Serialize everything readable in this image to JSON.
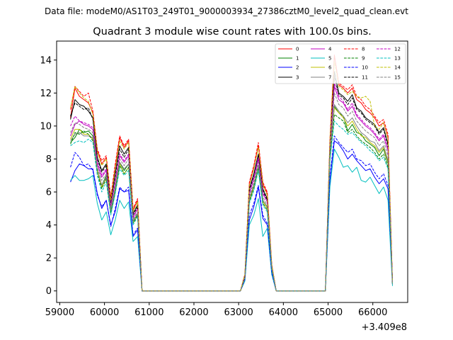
{
  "file_label": "Data file: modeM0/AS1T03_249T01_9000003934_27386cztM0_level2_quad_clean.evt",
  "chart_data": {
    "type": "line",
    "title": "Quadrant 3 module wise count rates with 100.0s bins.",
    "xlabel": "",
    "ylabel": "",
    "x_offset_label": "+3.409e8",
    "xlim": [
      58930,
      66780
    ],
    "ylim": [
      -0.7,
      15.15
    ],
    "x_ticks": [
      59000,
      60000,
      61000,
      62000,
      63000,
      64000,
      65000,
      66000
    ],
    "y_ticks": [
      0,
      2,
      4,
      6,
      8,
      10,
      12,
      14
    ],
    "grid": false,
    "legend_position": "top-right",
    "legend_columns": 4,
    "x": [
      59240,
      59340,
      59440,
      59540,
      59640,
      59740,
      59840,
      59940,
      60040,
      60140,
      60240,
      60340,
      60440,
      60540,
      60640,
      60740,
      60840,
      60940,
      63040,
      63140,
      63240,
      63340,
      63440,
      63540,
      63640,
      63740,
      63840,
      64940,
      65040,
      65140,
      65240,
      65340,
      65440,
      65540,
      65640,
      65740,
      65840,
      65940,
      66040,
      66140,
      66240,
      66340,
      66440
    ],
    "series": [
      {
        "name": "0",
        "color": "#ff0000",
        "dash": "solid",
        "values": [
          10.5,
          12.3,
          11.8,
          11.6,
          11.4,
          10.8,
          8.5,
          7.7,
          8.1,
          5.6,
          7.5,
          9.3,
          8.7,
          9.1,
          4.9,
          5.5,
          0,
          0,
          0,
          1.0,
          6.5,
          7.5,
          8.8,
          6.5,
          5.9,
          1.6,
          0,
          0,
          9.0,
          14.3,
          12.5,
          12.3,
          12.0,
          12.3,
          11.6,
          11.4,
          11.0,
          10.8,
          10.5,
          10.0,
          10.2,
          9.3,
          0.5
        ]
      },
      {
        "name": "1",
        "color": "#008000",
        "dash": "solid",
        "values": [
          9.0,
          9.3,
          9.8,
          9.6,
          9.7,
          9.4,
          7.3,
          6.4,
          7.0,
          4.8,
          6.2,
          7.8,
          7.3,
          7.7,
          4.2,
          4.7,
          0,
          0,
          0,
          0.8,
          5.6,
          6.4,
          7.6,
          5.5,
          5.1,
          1.4,
          0,
          0,
          8.3,
          11.2,
          10.8,
          10.6,
          9.7,
          10.1,
          9.6,
          9.5,
          9.1,
          8.9,
          8.7,
          8.2,
          8.6,
          7.7,
          0.4
        ]
      },
      {
        "name": "2",
        "color": "#0000ff",
        "dash": "solid",
        "values": [
          6.6,
          7.3,
          7.7,
          7.6,
          7.4,
          7.4,
          5.9,
          5.0,
          5.5,
          4.0,
          4.8,
          6.2,
          6.0,
          6.1,
          3.3,
          3.7,
          0,
          0,
          0,
          0.7,
          4.3,
          5.1,
          6.3,
          4.4,
          4.0,
          1.1,
          0,
          0,
          6.7,
          9.1,
          8.9,
          8.5,
          8.0,
          8.3,
          7.9,
          7.6,
          7.3,
          7.4,
          6.9,
          6.5,
          6.8,
          6.2,
          0.4
        ]
      },
      {
        "name": "3",
        "color": "#000000",
        "dash": "solid",
        "values": [
          10.4,
          11.6,
          11.3,
          11.2,
          10.9,
          10.5,
          8.1,
          7.3,
          7.7,
          5.4,
          7.1,
          8.8,
          8.3,
          8.7,
          4.7,
          5.2,
          0,
          0,
          0,
          0.9,
          6.2,
          7.1,
          8.3,
          6.2,
          5.6,
          1.5,
          0,
          0,
          8.8,
          13.3,
          12.0,
          11.8,
          11.5,
          11.9,
          11.1,
          10.9,
          10.5,
          10.3,
          10.1,
          9.6,
          9.9,
          8.9,
          0.5
        ]
      },
      {
        "name": "4",
        "color": "#c000c0",
        "dash": "solid",
        "values": [
          9.4,
          10.1,
          10.3,
          10.1,
          10.0,
          9.8,
          7.7,
          6.9,
          7.3,
          5.1,
          6.6,
          8.2,
          7.8,
          8.2,
          4.4,
          5.0,
          0,
          0,
          0,
          0.8,
          5.9,
          6.8,
          8.0,
          5.9,
          5.4,
          1.5,
          0,
          0,
          8.5,
          12.4,
          11.6,
          11.4,
          10.9,
          11.2,
          10.6,
          10.3,
          10.0,
          9.8,
          9.5,
          9.1,
          9.4,
          8.5,
          0.5
        ]
      },
      {
        "name": "5",
        "color": "#00bfbf",
        "dash": "solid",
        "values": [
          6.7,
          7.0,
          6.7,
          6.7,
          6.8,
          7.0,
          5.3,
          4.3,
          4.8,
          3.4,
          4.3,
          5.5,
          5.0,
          5.4,
          3.0,
          3.3,
          0,
          0,
          0,
          0.6,
          4.0,
          4.6,
          5.6,
          3.3,
          3.8,
          1.0,
          0,
          0,
          6.3,
          8.6,
          8.1,
          7.5,
          7.6,
          7.2,
          7.5,
          6.7,
          6.6,
          6.9,
          6.4,
          5.9,
          6.3,
          5.5,
          0.3
        ]
      },
      {
        "name": "6",
        "color": "#bfbf00",
        "dash": "solid",
        "values": [
          9.2,
          9.8,
          9.8,
          9.5,
          9.5,
          9.2,
          7.3,
          6.3,
          6.8,
          4.7,
          6.0,
          7.7,
          7.1,
          7.5,
          4.1,
          4.6,
          0,
          0,
          0,
          0.8,
          5.5,
          6.3,
          7.5,
          5.4,
          5.0,
          1.4,
          0,
          0,
          8.2,
          11.1,
          10.8,
          10.5,
          10.0,
          10.3,
          9.8,
          9.4,
          9.3,
          9.0,
          8.8,
          8.4,
          8.7,
          7.8,
          0.4
        ]
      },
      {
        "name": "7",
        "color": "#808080",
        "dash": "solid",
        "values": [
          9.1,
          9.5,
          9.6,
          9.4,
          9.4,
          9.3,
          7.4,
          6.4,
          6.9,
          4.8,
          6.2,
          7.8,
          7.4,
          7.7,
          4.2,
          4.7,
          0,
          0,
          0,
          0.8,
          5.6,
          6.4,
          7.6,
          5.5,
          5.1,
          1.4,
          0,
          0,
          8.2,
          11.3,
          10.9,
          10.6,
          10.2,
          10.5,
          10.0,
          9.6,
          9.4,
          9.1,
          9.0,
          8.5,
          8.8,
          7.9,
          0.4
        ]
      },
      {
        "name": "8",
        "color": "#ff0000",
        "dash": "dashed",
        "values": [
          11.0,
          12.4,
          12.1,
          11.8,
          12.0,
          10.9,
          8.6,
          7.9,
          8.2,
          5.7,
          7.7,
          9.4,
          8.8,
          9.2,
          5.0,
          5.6,
          0,
          0,
          0,
          1.0,
          6.6,
          7.6,
          9.0,
          6.6,
          6.0,
          1.6,
          0,
          0,
          9.2,
          14.3,
          12.6,
          12.4,
          12.2,
          12.5,
          11.8,
          11.6,
          11.2,
          11.0,
          10.6,
          10.2,
          10.4,
          9.5,
          0.5
        ]
      },
      {
        "name": "9",
        "color": "#008000",
        "dash": "dashed",
        "values": [
          8.9,
          9.6,
          9.5,
          9.7,
          9.5,
          9.1,
          7.1,
          6.2,
          6.8,
          4.7,
          6.0,
          7.6,
          7.1,
          7.5,
          4.1,
          4.6,
          0,
          0,
          0,
          0.8,
          5.4,
          6.2,
          7.4,
          5.3,
          4.9,
          1.3,
          0,
          0,
          8.0,
          10.7,
          10.5,
          10.3,
          9.6,
          9.8,
          9.4,
          9.1,
          8.9,
          8.7,
          8.4,
          8.0,
          8.3,
          7.5,
          0.4
        ]
      },
      {
        "name": "10",
        "color": "#0000ff",
        "dash": "dashed",
        "values": [
          7.5,
          8.4,
          8.1,
          7.6,
          7.7,
          7.3,
          5.8,
          5.1,
          5.5,
          3.9,
          5.0,
          6.3,
          6.0,
          6.3,
          3.4,
          3.8,
          0,
          0,
          0,
          0.7,
          4.6,
          5.3,
          6.4,
          4.6,
          4.1,
          1.1,
          0,
          0,
          6.9,
          9.4,
          9.0,
          8.7,
          8.4,
          8.6,
          8.0,
          7.9,
          7.6,
          7.7,
          7.2,
          6.8,
          7.1,
          6.4,
          0.4
        ]
      },
      {
        "name": "11",
        "color": "#000000",
        "dash": "dashed",
        "values": [
          10.6,
          11.4,
          11.2,
          11.0,
          11.1,
          10.4,
          8.0,
          7.2,
          7.6,
          5.3,
          7.0,
          8.6,
          8.1,
          8.6,
          4.6,
          5.1,
          0,
          0,
          0,
          0.9,
          6.1,
          7.0,
          8.2,
          6.1,
          5.5,
          1.5,
          0,
          0,
          8.7,
          13.0,
          11.9,
          11.7,
          11.3,
          11.7,
          11.0,
          10.8,
          10.4,
          10.2,
          10.0,
          9.5,
          9.8,
          8.8,
          0.5
        ]
      },
      {
        "name": "12",
        "color": "#c000c0",
        "dash": "dashed",
        "values": [
          10.0,
          10.6,
          10.3,
          10.2,
          10.1,
          9.9,
          7.8,
          7.0,
          7.4,
          5.2,
          6.7,
          8.3,
          7.9,
          8.3,
          4.5,
          5.0,
          0,
          0,
          0,
          0.9,
          5.9,
          6.9,
          8.1,
          6.0,
          5.4,
          1.5,
          0,
          0,
          8.6,
          12.6,
          11.8,
          11.5,
          11.0,
          11.4,
          10.7,
          10.4,
          10.1,
          9.9,
          9.6,
          9.2,
          9.5,
          8.6,
          0.5
        ]
      },
      {
        "name": "13",
        "color": "#00bfbf",
        "dash": "dashed",
        "values": [
          8.8,
          9.0,
          9.1,
          9.0,
          9.2,
          9.0,
          7.0,
          6.0,
          6.6,
          4.6,
          5.9,
          7.4,
          7.0,
          7.3,
          4.0,
          4.5,
          0,
          0,
          0,
          0.8,
          5.3,
          6.1,
          7.3,
          5.2,
          4.8,
          1.3,
          0,
          0,
          7.9,
          10.3,
          10.0,
          9.8,
          9.5,
          9.6,
          9.3,
          9.0,
          8.8,
          8.5,
          8.3,
          7.9,
          8.1,
          7.4,
          0.4
        ]
      },
      {
        "name": "14",
        "color": "#bfbf00",
        "dash": "dashed",
        "values": [
          11.1,
          12.4,
          12.0,
          11.7,
          11.5,
          10.7,
          8.4,
          7.6,
          8.0,
          5.5,
          7.4,
          9.1,
          8.6,
          9.0,
          4.8,
          5.4,
          0,
          0,
          0,
          1.0,
          6.4,
          7.4,
          8.7,
          6.4,
          5.8,
          1.6,
          0,
          0,
          9.0,
          13.9,
          12.4,
          12.2,
          11.9,
          12.1,
          11.8,
          11.7,
          11.8,
          11.5,
          10.0,
          9.8,
          10.2,
          9.2,
          0.5
        ]
      },
      {
        "name": "15",
        "color": "#808080",
        "dash": "dashed",
        "values": [
          9.6,
          10.2,
          10.1,
          9.9,
          9.8,
          9.6,
          7.5,
          6.7,
          7.1,
          5.0,
          6.4,
          8.0,
          7.6,
          8.0,
          4.3,
          4.8,
          0,
          0,
          0,
          0.8,
          5.7,
          6.6,
          7.8,
          5.7,
          5.2,
          1.4,
          0,
          0,
          8.4,
          12.0,
          11.3,
          11.1,
          10.6,
          10.9,
          10.3,
          10.0,
          9.7,
          9.5,
          9.3,
          8.8,
          9.1,
          8.2,
          0.4
        ]
      }
    ]
  }
}
